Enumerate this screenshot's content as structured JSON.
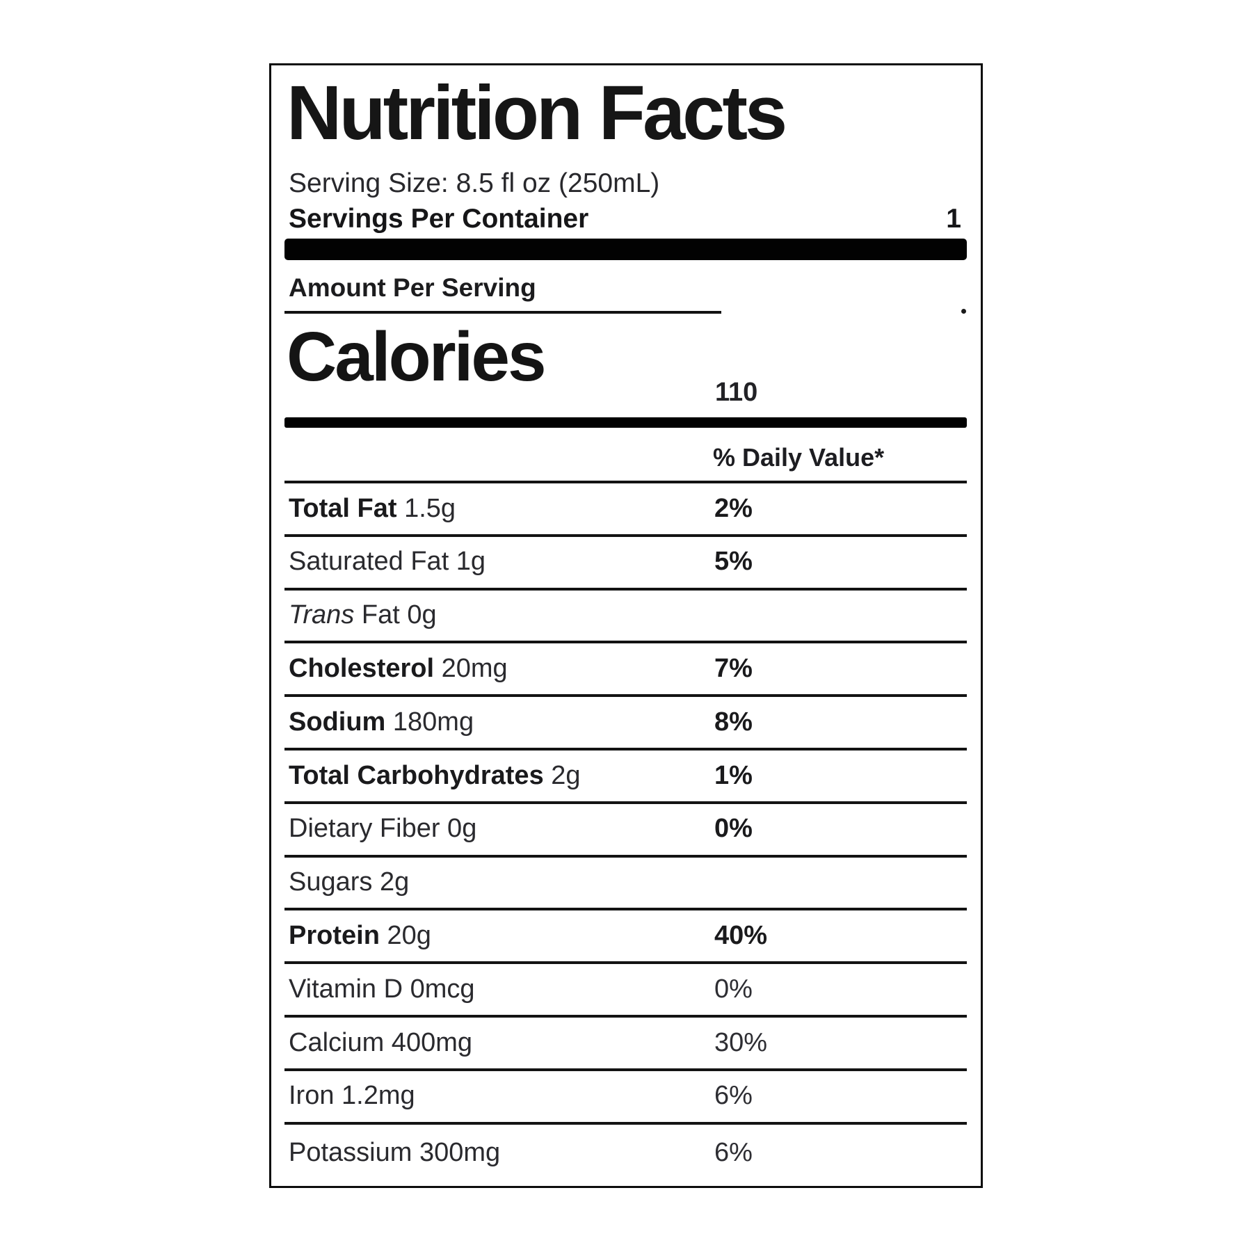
{
  "label": {
    "title": "Nutrition Facts",
    "serving_size": "Serving Size: 8.5 fl oz (250mL)",
    "servings_per_container_label": "Servings Per Container",
    "servings_per_container_value": "1",
    "amount_per_serving": "Amount Per Serving",
    "calories_label": "Calories",
    "calories_value": "110",
    "daily_value_header": "% Daily Value*",
    "rows": [
      {
        "strong": "Total Fat",
        "italic": "",
        "rest": " 1.5g",
        "value": "2%"
      },
      {
        "strong": "",
        "italic": "",
        "rest": "Saturated Fat 1g",
        "value": "5%"
      },
      {
        "strong": "",
        "italic": "Trans",
        "rest": " Fat 0g",
        "value": ""
      },
      {
        "strong": "Cholesterol",
        "italic": "",
        "rest": " 20mg",
        "value": "7%"
      },
      {
        "strong": "Sodium",
        "italic": "",
        "rest": " 180mg",
        "value": "8%"
      },
      {
        "strong": "Total Carbohydrates",
        "italic": "",
        "rest": " 2g",
        "value": "1%"
      },
      {
        "strong": "",
        "italic": "",
        "rest": "Dietary Fiber 0g",
        "value": "0%"
      },
      {
        "strong": "",
        "italic": "",
        "rest": "Sugars 2g",
        "value": ""
      },
      {
        "strong": "Protein",
        "italic": "",
        "rest": " 20g",
        "value": "40%"
      },
      {
        "strong": "",
        "italic": "",
        "rest": "Vitamin D 0mcg",
        "value": "0%"
      },
      {
        "strong": "",
        "italic": "",
        "rest": "Calcium 400mg",
        "value": "30%"
      },
      {
        "strong": "",
        "italic": "",
        "rest": "Iron 1.2mg",
        "value": "6%"
      },
      {
        "strong": "",
        "italic": "",
        "rest": "Potassium 300mg",
        "value": "6%"
      }
    ],
    "colors": {
      "ink": "#1b1b1b",
      "rule": "#131313",
      "bar": "#020202",
      "background": "#ffffff"
    }
  }
}
